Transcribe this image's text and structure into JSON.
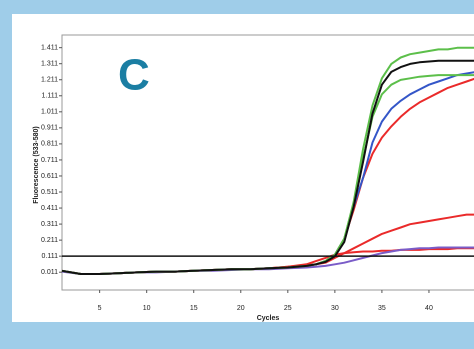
{
  "chart_data": {
    "type": "line",
    "annotation": "C",
    "x_label": "Cycles",
    "y_label": "Fluorescence (533-580)",
    "x": [
      1,
      3,
      5,
      7,
      9,
      11,
      13,
      15,
      17,
      19,
      21,
      23,
      25,
      27,
      28,
      29,
      30,
      31,
      32,
      33,
      34,
      35,
      36,
      37,
      38,
      39,
      40,
      41,
      42,
      43,
      44,
      45
    ],
    "xlim": [
      1,
      45
    ],
    "xticks": [
      5,
      10,
      15,
      20,
      25,
      30,
      35,
      40
    ],
    "ylim": [
      -0.1,
      1.49
    ],
    "yticks": [
      0.011,
      0.111,
      0.211,
      0.311,
      0.411,
      0.511,
      0.611,
      0.711,
      0.811,
      0.911,
      1.011,
      1.111,
      1.211,
      1.311,
      1.411
    ],
    "threshold": 0.111,
    "series": [
      {
        "color": "#ea2a2a",
        "values": [
          0.02,
          0.0,
          0.0,
          0.005,
          0.01,
          0.015,
          0.015,
          0.02,
          0.025,
          0.03,
          0.03,
          0.035,
          0.045,
          0.06,
          0.08,
          0.1,
          0.12,
          0.13,
          0.135,
          0.14,
          0.14,
          0.145,
          0.145,
          0.15,
          0.15,
          0.15,
          0.155,
          0.155,
          0.155,
          0.16,
          0.16,
          0.16
        ]
      },
      {
        "color": "#7a5cc8",
        "values": [
          0.015,
          0.0,
          0.0,
          0.005,
          0.01,
          0.01,
          0.015,
          0.02,
          0.02,
          0.025,
          0.03,
          0.03,
          0.035,
          0.04,
          0.045,
          0.05,
          0.06,
          0.07,
          0.085,
          0.1,
          0.115,
          0.13,
          0.14,
          0.15,
          0.155,
          0.16,
          0.16,
          0.165,
          0.165,
          0.165,
          0.165,
          0.165
        ]
      },
      {
        "color": "#ea2a2a",
        "values": [
          0.02,
          0.0,
          0.0,
          0.005,
          0.01,
          0.015,
          0.015,
          0.02,
          0.025,
          0.03,
          0.03,
          0.035,
          0.045,
          0.055,
          0.06,
          0.07,
          0.1,
          0.13,
          0.16,
          0.19,
          0.22,
          0.25,
          0.27,
          0.29,
          0.31,
          0.32,
          0.33,
          0.34,
          0.35,
          0.36,
          0.37,
          0.37
        ]
      },
      {
        "color": "#ea2a2a",
        "values": [
          0.02,
          0.0,
          0.0,
          0.005,
          0.01,
          0.015,
          0.015,
          0.02,
          0.025,
          0.03,
          0.03,
          0.035,
          0.04,
          0.05,
          0.06,
          0.08,
          0.12,
          0.22,
          0.4,
          0.6,
          0.75,
          0.85,
          0.92,
          0.98,
          1.03,
          1.07,
          1.1,
          1.13,
          1.16,
          1.18,
          1.2,
          1.22
        ]
      },
      {
        "color": "#3456c8",
        "values": [
          0.02,
          0.0,
          0.0,
          0.005,
          0.01,
          0.015,
          0.015,
          0.02,
          0.025,
          0.03,
          0.03,
          0.035,
          0.04,
          0.05,
          0.06,
          0.08,
          0.12,
          0.22,
          0.42,
          0.6,
          0.82,
          0.95,
          1.03,
          1.08,
          1.12,
          1.15,
          1.18,
          1.2,
          1.22,
          1.24,
          1.25,
          1.26
        ]
      },
      {
        "color": "#5cbf4a",
        "values": [
          0.02,
          0.0,
          0.0,
          0.005,
          0.01,
          0.015,
          0.015,
          0.02,
          0.025,
          0.03,
          0.03,
          0.035,
          0.04,
          0.05,
          0.06,
          0.08,
          0.12,
          0.22,
          0.44,
          0.72,
          0.98,
          1.12,
          1.18,
          1.21,
          1.22,
          1.23,
          1.235,
          1.24,
          1.24,
          1.24,
          1.24,
          1.24
        ]
      },
      {
        "color": "#5cbf4a",
        "values": [
          0.02,
          0.0,
          0.0,
          0.005,
          0.01,
          0.015,
          0.015,
          0.02,
          0.025,
          0.03,
          0.03,
          0.035,
          0.04,
          0.05,
          0.06,
          0.08,
          0.12,
          0.22,
          0.45,
          0.78,
          1.05,
          1.22,
          1.31,
          1.35,
          1.37,
          1.38,
          1.39,
          1.4,
          1.4,
          1.41,
          1.41,
          1.41
        ]
      },
      {
        "color": "#111111",
        "values": [
          0.02,
          0.0,
          0.0,
          0.005,
          0.01,
          0.015,
          0.015,
          0.02,
          0.025,
          0.03,
          0.03,
          0.035,
          0.04,
          0.05,
          0.06,
          0.075,
          0.11,
          0.2,
          0.42,
          0.7,
          1.0,
          1.18,
          1.26,
          1.29,
          1.31,
          1.32,
          1.325,
          1.33,
          1.33,
          1.33,
          1.33,
          1.33
        ]
      }
    ]
  }
}
